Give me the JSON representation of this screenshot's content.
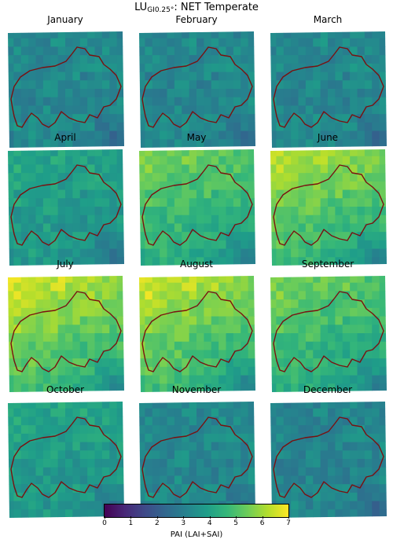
{
  "title_prefix": "LU",
  "title_subscript": "GI0.25°",
  "title_suffix": ": NET Temperate",
  "colorbar": {
    "label": "PAI (LAI+SAI)",
    "min": 0,
    "max": 7,
    "ticks": [
      "0",
      "1",
      "2",
      "3",
      "4",
      "5",
      "6",
      "7"
    ],
    "colormap": "viridis"
  },
  "border_color": "#7a1010",
  "panels": [
    {
      "month": "January",
      "level": 3.3
    },
    {
      "month": "February",
      "level": 3.3
    },
    {
      "month": "March",
      "level": 3.3
    },
    {
      "month": "April",
      "level": 3.8
    },
    {
      "month": "May",
      "level": 4.6
    },
    {
      "month": "June",
      "level": 5.0
    },
    {
      "month": "July",
      "level": 5.2
    },
    {
      "month": "August",
      "level": 5.1
    },
    {
      "month": "September",
      "level": 4.6
    },
    {
      "month": "October",
      "level": 3.8
    },
    {
      "month": "November",
      "level": 3.3
    },
    {
      "month": "December",
      "level": 3.2
    }
  ]
}
